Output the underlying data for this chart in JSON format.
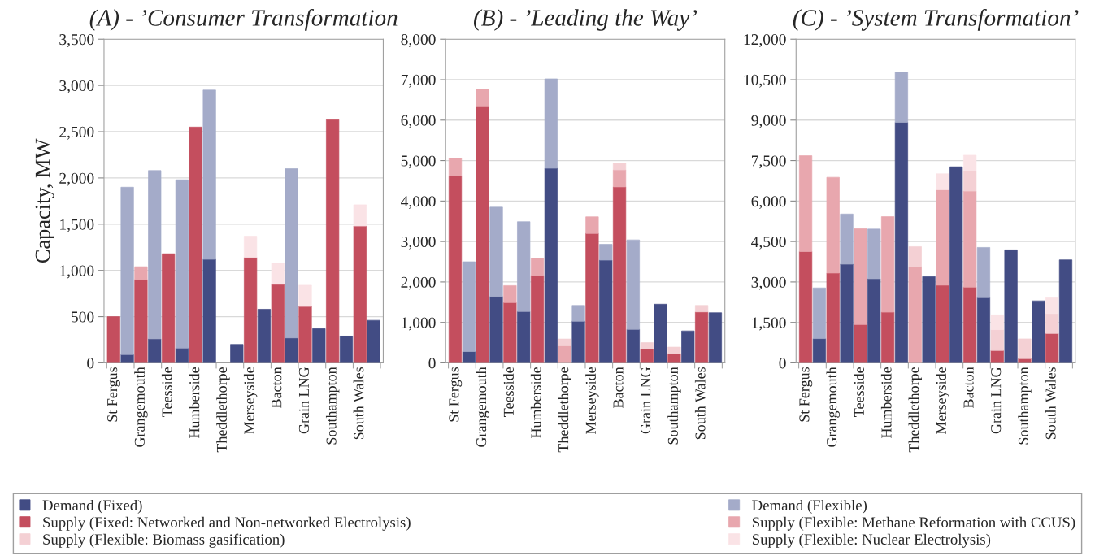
{
  "chart_data": [
    {
      "type": "bar",
      "stacked": true,
      "title": "(A) - ’Consumer Transformation",
      "ylabel": "Capacity, MW",
      "legend": "bottom",
      "grid": "y",
      "categories": [
        "St Fergus",
        null,
        "Grangemouth",
        null,
        "Teesside",
        null,
        "Humberside",
        null,
        "Theddlethorpe",
        null,
        "Merseyside",
        null,
        "Bacton",
        null,
        "Grain LNG",
        null,
        "Southampton",
        null,
        "South Wales",
        null
      ],
      "ylim": [
        0,
        3500
      ],
      "yticks": [
        0,
        500,
        {
          "value": 1000,
          "label": "1,000"
        },
        {
          "value": 1500,
          "label": "1,500"
        },
        {
          "value": 2000,
          "label": "2,000"
        },
        {
          "value": 2500,
          "label": "2,500"
        },
        {
          "value": 3000,
          "label": "3,000"
        },
        {
          "value": 3500,
          "label": "3,500"
        }
      ],
      "series": [
        {
          "name": "Demand (Fixed)",
          "color": "#424c84",
          "values": [
            null,
            90,
            null,
            260,
            null,
            160,
            null,
            1120,
            null,
            200,
            null,
            580,
            null,
            270,
            null,
            370,
            null,
            290,
            null,
            460
          ]
        },
        {
          "name": "Demand (Flexible)",
          "color": "#a4abc9",
          "values": [
            null,
            1810,
            null,
            1820,
            null,
            1820,
            null,
            1830,
            null,
            0,
            null,
            0,
            null,
            1830,
            null,
            0,
            null,
            0,
            null,
            0
          ]
        },
        {
          "name": "Supply (Fixed: Networked and Non-networked Electrolysis)",
          "color": "#c44e5e",
          "values": [
            500,
            null,
            900,
            null,
            1180,
            null,
            2550,
            null,
            0,
            null,
            1140,
            null,
            850,
            null,
            610,
            null,
            2630,
            null,
            1480,
            null
          ]
        },
        {
          "name": "Supply (Flexible: Methane Reformation with CCUS)",
          "color": "#e8a7ae",
          "values": [
            0,
            null,
            140,
            null,
            0,
            null,
            0,
            null,
            0,
            null,
            0,
            null,
            0,
            null,
            0,
            null,
            0,
            null,
            0,
            null
          ]
        },
        {
          "name": "Supply (Flexible: Biomass gasification)",
          "color": "#f4d0d4",
          "values": [
            0,
            null,
            0,
            null,
            0,
            null,
            0,
            null,
            0,
            null,
            0,
            null,
            0,
            null,
            0,
            null,
            0,
            null,
            0,
            null
          ]
        },
        {
          "name": "Supply (Flexible: Nuclear Electrolysis)",
          "color": "#fae3e6",
          "values": [
            0,
            null,
            0,
            null,
            0,
            null,
            0,
            null,
            0,
            null,
            230,
            null,
            230,
            null,
            230,
            null,
            0,
            null,
            230,
            null
          ]
        }
      ]
    },
    {
      "type": "bar",
      "stacked": true,
      "title": "(B) - ’Leading the Way’",
      "grid": "y",
      "categories": [
        "St Fergus",
        null,
        "Grangemouth",
        null,
        "Teesside",
        null,
        "Humberside",
        null,
        "Theddlethorpe",
        null,
        "Merseyside",
        null,
        "Bacton",
        null,
        "Grain LNG",
        null,
        "Southampton",
        null,
        "South Wales",
        null
      ],
      "ylim": [
        0,
        8000
      ],
      "yticks": [
        0,
        {
          "value": 1000,
          "label": "1,000"
        },
        {
          "value": 2000,
          "label": "2,000"
        },
        {
          "value": 3000,
          "label": "3,000"
        },
        {
          "value": 4000,
          "label": "4,000"
        },
        {
          "value": 5000,
          "label": "5,000"
        },
        {
          "value": 6000,
          "label": "6,000"
        },
        {
          "value": 7000,
          "label": "7,000"
        },
        {
          "value": 8000,
          "label": "8,000"
        }
      ],
      "series": [
        {
          "color": "#424c84",
          "values": [
            null,
            280,
            null,
            1640,
            null,
            1270,
            null,
            4810,
            null,
            1030,
            null,
            2540,
            null,
            830,
            null,
            1450,
            null,
            790,
            null,
            1240
          ]
        },
        {
          "color": "#a4abc9",
          "values": [
            null,
            2220,
            null,
            2210,
            null,
            2220,
            null,
            2210,
            null,
            390,
            null,
            390,
            null,
            2210,
            null,
            0,
            null,
            0,
            null,
            0
          ]
        },
        {
          "color": "#c44e5e",
          "values": [
            4620,
            null,
            6330,
            null,
            1490,
            null,
            2160,
            null,
            0,
            null,
            3200,
            null,
            4350,
            null,
            340,
            null,
            230,
            null,
            1260,
            null
          ]
        },
        {
          "color": "#e8a7ae",
          "values": [
            430,
            null,
            430,
            null,
            420,
            null,
            430,
            null,
            420,
            null,
            410,
            null,
            420,
            null,
            0,
            null,
            0,
            null,
            0,
            null
          ]
        },
        {
          "color": "#f4d0d4",
          "values": [
            0,
            null,
            0,
            null,
            0,
            null,
            0,
            null,
            170,
            null,
            0,
            null,
            160,
            null,
            160,
            null,
            160,
            null,
            160,
            null
          ]
        },
        {
          "color": "#fae3e6",
          "values": [
            0,
            null,
            0,
            null,
            0,
            null,
            0,
            null,
            0,
            null,
            0,
            null,
            0,
            null,
            0,
            null,
            0,
            null,
            0,
            null
          ]
        }
      ]
    },
    {
      "type": "bar",
      "stacked": true,
      "title": "(C) - ’System Transformation’",
      "grid": "y",
      "categories": [
        "St Fergus",
        null,
        "Grangemouth",
        null,
        "Teesside",
        null,
        "Humberside",
        null,
        "Theddlethorpe",
        null,
        "Merseyside",
        null,
        "Bacton",
        null,
        "Grain LNG",
        null,
        "Southampton",
        null,
        "South Wales",
        null
      ],
      "ylim": [
        0,
        12000
      ],
      "yticks": [
        0,
        {
          "value": 1500,
          "label": "1,500"
        },
        {
          "value": 3000,
          "label": "3,000"
        },
        {
          "value": 4500,
          "label": "4,500"
        },
        {
          "value": 6000,
          "label": "6,000"
        },
        {
          "value": 7500,
          "label": "7,500"
        },
        {
          "value": 9000,
          "label": "9,000"
        },
        {
          "value": 10500,
          "label": "10,500"
        },
        {
          "value": 12000,
          "label": "12,000"
        }
      ],
      "series": [
        {
          "color": "#424c84",
          "values": [
            null,
            900,
            null,
            3660,
            null,
            3120,
            null,
            8920,
            null,
            3200,
            null,
            7270,
            null,
            2420,
            null,
            4190,
            null,
            2300,
            null,
            3820
          ]
        },
        {
          "color": "#a4abc9",
          "values": [
            null,
            1880,
            null,
            1860,
            null,
            1840,
            null,
            1860,
            null,
            0,
            null,
            0,
            null,
            1860,
            null,
            0,
            null,
            0,
            null,
            0
          ]
        },
        {
          "color": "#c44e5e",
          "values": [
            4130,
            null,
            3330,
            null,
            1420,
            null,
            1880,
            null,
            0,
            null,
            2880,
            null,
            2810,
            null,
            460,
            null,
            160,
            null,
            1090,
            null
          ]
        },
        {
          "color": "#e8a7ae",
          "values": [
            3550,
            null,
            3550,
            null,
            3560,
            null,
            3540,
            null,
            3570,
            null,
            3540,
            null,
            3560,
            null,
            0,
            null,
            0,
            null,
            0,
            null
          ]
        },
        {
          "color": "#f4d0d4",
          "values": [
            0,
            null,
            0,
            null,
            0,
            null,
            0,
            null,
            740,
            null,
            0,
            null,
            740,
            null,
            770,
            null,
            730,
            null,
            740,
            null
          ]
        },
        {
          "color": "#fae3e6",
          "values": [
            0,
            null,
            0,
            null,
            0,
            null,
            0,
            null,
            0,
            null,
            590,
            null,
            590,
            null,
            550,
            null,
            0,
            null,
            590,
            null
          ]
        }
      ]
    }
  ]
}
